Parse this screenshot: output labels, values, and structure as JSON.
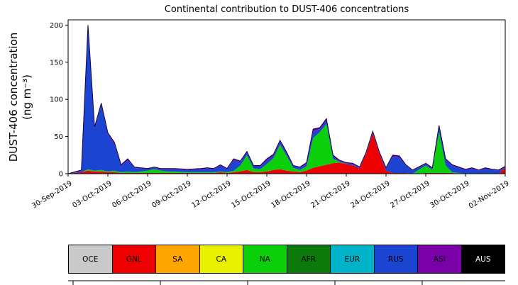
{
  "figure": {
    "title": "Continental contribution to DUST-406 concentrations",
    "ylabel_line1": "DUST-406 concentration",
    "ylabel_line2": "(ng m⁻³)"
  },
  "chart_data": {
    "type": "area",
    "stacked": true,
    "title": "Continental contribution to DUST-406 concentrations",
    "xlabel": "",
    "ylabel": "DUST-406 concentration (ng m⁻³)",
    "legend_position": "bottom",
    "grid": false,
    "xlim": [
      0,
      33
    ],
    "ylim": [
      0,
      207
    ],
    "outline_color": "#14003c",
    "y_ticks": [
      {
        "pos": 0,
        "label": "0"
      },
      {
        "pos": 50,
        "label": "50"
      },
      {
        "pos": 100,
        "label": "100"
      },
      {
        "pos": 150,
        "label": "150"
      },
      {
        "pos": 200,
        "label": "200"
      }
    ],
    "x_ticks": [
      {
        "pos": 0,
        "label": "30-Sep-2019"
      },
      {
        "pos": 3,
        "label": "03-Oct-2019"
      },
      {
        "pos": 6,
        "label": "06-Oct-2019"
      },
      {
        "pos": 9,
        "label": "09-Oct-2019"
      },
      {
        "pos": 12,
        "label": "12-Oct-2019"
      },
      {
        "pos": 15,
        "label": "15-Oct-2019"
      },
      {
        "pos": 18,
        "label": "18-Oct-2019"
      },
      {
        "pos": 21,
        "label": "21-Oct-2019"
      },
      {
        "pos": 24,
        "label": "24-Oct-2019"
      },
      {
        "pos": 27,
        "label": "27-Oct-2019"
      },
      {
        "pos": 30,
        "label": "30-Oct-2019"
      },
      {
        "pos": 33,
        "label": "02-Nov-2019"
      }
    ],
    "x": [
      0,
      1,
      1.5,
      2,
      2.5,
      3,
      3.5,
      4,
      4.5,
      5,
      6,
      6.5,
      7,
      7.5,
      8,
      9,
      10,
      10.5,
      11,
      11.5,
      12,
      12.5,
      13,
      13.5,
      14,
      14.5,
      15,
      15.5,
      16,
      16.5,
      17,
      17.5,
      18,
      18.5,
      19,
      19.5,
      20,
      20.5,
      21,
      21.5,
      22,
      22.5,
      23,
      23.5,
      24,
      24.5,
      25,
      25.5,
      26,
      27,
      27.5,
      28,
      28.5,
      29,
      30,
      30.5,
      31,
      31.5,
      32,
      32.5,
      33
    ],
    "series": [
      {
        "name": "OCE",
        "color": "#c9c9c9",
        "label_color": "#000000",
        "values": [
          0,
          0,
          0,
          0,
          0,
          0,
          0,
          0,
          0,
          0,
          0,
          0,
          0,
          0,
          0,
          0,
          0,
          0,
          0,
          0,
          0,
          0,
          0,
          0,
          0,
          0,
          0,
          0,
          0,
          0,
          0,
          0,
          0,
          0,
          0,
          0,
          0,
          0,
          0,
          0,
          0,
          0,
          0,
          0,
          0,
          0,
          0,
          0,
          0,
          0,
          0,
          0,
          0,
          0,
          0,
          0,
          0,
          0,
          0,
          0,
          0
        ]
      },
      {
        "name": "GNL",
        "color": "#ee0000",
        "label_color": "#000000",
        "values": [
          0,
          2,
          4,
          3,
          3,
          2,
          2,
          1,
          1,
          1,
          1,
          1,
          1,
          1,
          1,
          1,
          1,
          1,
          1,
          2,
          1,
          2,
          3,
          5,
          2,
          2,
          3,
          5,
          6,
          4,
          3,
          2,
          4,
          8,
          10,
          12,
          14,
          15,
          13,
          11,
          7,
          27,
          54,
          27,
          4,
          1,
          1,
          1,
          0,
          1,
          1,
          1,
          1,
          1,
          0,
          0,
          0,
          0,
          0,
          0,
          8
        ]
      },
      {
        "name": "SA",
        "color": "#ffa500",
        "label_color": "#000000",
        "values": [
          0,
          0,
          0,
          0,
          0,
          0,
          0,
          0,
          0,
          0,
          0,
          0,
          0,
          0,
          0,
          0,
          0,
          0,
          0,
          0,
          0,
          0,
          0,
          0,
          0,
          0,
          0,
          0,
          0,
          0,
          0,
          0,
          0,
          0,
          0,
          0,
          0,
          0,
          0,
          0,
          0,
          0,
          0,
          0,
          0,
          0,
          0,
          0,
          0,
          0,
          0,
          0,
          0,
          0,
          0,
          0,
          0,
          0,
          0,
          0,
          0
        ]
      },
      {
        "name": "CA",
        "color": "#e9f000",
        "label_color": "#000000",
        "values": [
          0,
          0,
          0,
          0,
          0,
          0,
          0,
          0,
          0,
          0,
          0,
          0,
          0,
          0,
          0,
          0,
          0,
          0,
          0,
          0,
          0,
          0,
          0,
          0,
          0,
          0,
          0,
          0,
          0,
          0,
          0,
          0,
          0,
          0,
          0,
          0,
          0,
          0,
          0,
          0,
          0,
          0,
          0,
          0,
          0,
          0,
          0,
          0,
          0,
          0,
          0,
          0,
          0,
          0,
          0,
          0,
          0,
          0,
          0,
          0,
          0
        ]
      },
      {
        "name": "NA",
        "color": "#0ccf0c",
        "label_color": "#000000",
        "values": [
          0,
          0,
          2,
          1,
          2,
          1,
          2,
          1,
          2,
          1,
          3,
          5,
          3,
          2,
          2,
          1,
          1,
          1,
          1,
          1,
          1,
          2,
          8,
          20,
          5,
          4,
          10,
          16,
          33,
          20,
          5,
          3,
          6,
          40,
          46,
          55,
          6,
          1,
          0,
          0,
          0,
          0,
          0,
          0,
          0,
          0,
          0,
          0,
          0,
          10,
          4,
          55,
          10,
          1,
          0,
          0,
          0,
          0,
          0,
          0,
          0
        ]
      },
      {
        "name": "AFR",
        "color": "#0b7a0b",
        "label_color": "#000000",
        "values": [
          0,
          0,
          0,
          0,
          0,
          0,
          0,
          0,
          0,
          0,
          0,
          0,
          0,
          0,
          0,
          0,
          0,
          0,
          0,
          0,
          0,
          0,
          0,
          0,
          0,
          0,
          0,
          0,
          0,
          0,
          0,
          0,
          0,
          0,
          0,
          0,
          0,
          0,
          0,
          0,
          0,
          0,
          0,
          0,
          0,
          0,
          0,
          0,
          0,
          0,
          0,
          0,
          0,
          0,
          0,
          0,
          0,
          0,
          0,
          0,
          0
        ]
      },
      {
        "name": "EUR",
        "color": "#00b3c8",
        "label_color": "#000000",
        "values": [
          0,
          0,
          0,
          0,
          0,
          0,
          0,
          0,
          0,
          0,
          0,
          0,
          0,
          0,
          0,
          0,
          0,
          0,
          0,
          0,
          0,
          0,
          0,
          0,
          0,
          0,
          0,
          0,
          0,
          0,
          0,
          0,
          0,
          0,
          0,
          0,
          0,
          0,
          0,
          0,
          0,
          0,
          0,
          0,
          0,
          0,
          0,
          0,
          0,
          0,
          0,
          0,
          0,
          0,
          0,
          0,
          0,
          0,
          0,
          0,
          0
        ]
      },
      {
        "name": "RUS",
        "color": "#1b44d2",
        "label_color": "#000000",
        "values": [
          0,
          2,
          192,
          57,
          88,
          50,
          36,
          9,
          15,
          6,
          2,
          2,
          2,
          3,
          3,
          3,
          4,
          5,
          4,
          8,
          4,
          14,
          5,
          3,
          3,
          4,
          5,
          3,
          4,
          3,
          2,
          3,
          3,
          9,
          4,
          5,
          3,
          1,
          1,
          2,
          1,
          1,
          1,
          1,
          3,
          22,
          21,
          10,
          4,
          2,
          2,
          7,
          8,
          9,
          5,
          7,
          4,
          7,
          5,
          4,
          1
        ]
      },
      {
        "name": "ASI",
        "color": "#7a00a8",
        "label_color": "#000000",
        "values": [
          0,
          1,
          2,
          2,
          2,
          2,
          2,
          1,
          2,
          1,
          1,
          1,
          1,
          1,
          1,
          1,
          1,
          1,
          1,
          1,
          1,
          2,
          1,
          2,
          1,
          1,
          2,
          2,
          2,
          2,
          1,
          1,
          2,
          3,
          2,
          2,
          2,
          1,
          1,
          1,
          1,
          1,
          2,
          1,
          1,
          2,
          2,
          1,
          1,
          1,
          1,
          2,
          1,
          1,
          1,
          1,
          1,
          1,
          1,
          1,
          1
        ]
      },
      {
        "name": "AUS",
        "color": "#000000",
        "label_color": "#ffffff",
        "values": [
          0,
          0,
          0,
          0,
          0,
          0,
          0,
          0,
          0,
          0,
          0,
          0,
          0,
          0,
          0,
          0,
          0,
          0,
          0,
          0,
          0,
          0,
          0,
          0,
          0,
          0,
          0,
          0,
          0,
          0,
          0,
          0,
          0,
          0,
          0,
          0,
          0,
          0,
          0,
          0,
          0,
          0,
          0,
          0,
          0,
          0,
          0,
          0,
          0,
          0,
          0,
          0,
          0,
          0,
          0,
          0,
          0,
          0,
          0,
          0,
          0
        ]
      }
    ]
  }
}
